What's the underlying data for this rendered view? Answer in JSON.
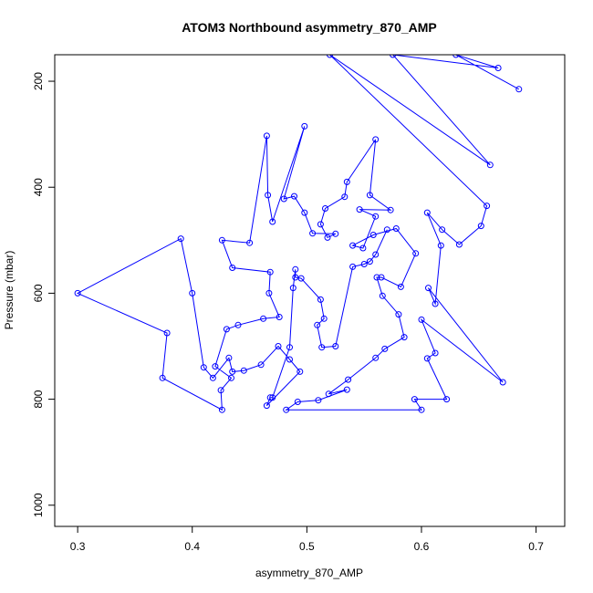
{
  "chart_data": {
    "type": "line",
    "title": "ATOM3 Northbound asymmetry_870_AMP",
    "xlabel": "asymmetry_870_AMP",
    "ylabel": "Pressure (mbar)",
    "xlim": [
      0.28,
      0.725
    ],
    "ylim": [
      1040,
      150
    ],
    "y_reversed": true,
    "xticks": [
      0.3,
      0.4,
      0.5,
      0.6,
      0.7
    ],
    "xtick_labels": [
      "0.3",
      "0.4",
      "0.5",
      "0.6",
      "0.7"
    ],
    "yticks": [
      200,
      400,
      600,
      800,
      1000
    ],
    "ytick_labels": [
      "200",
      "400",
      "600",
      "800",
      "1000"
    ],
    "grid": false,
    "series": [
      {
        "color": "#0000ff",
        "marker": "open-circle",
        "points": [
          [
            0.685,
            215
          ],
          [
            0.63,
            150
          ],
          [
            0.667,
            175
          ],
          [
            0.575,
            150
          ],
          [
            0.66,
            358
          ],
          [
            0.52,
            150
          ],
          [
            0.657,
            435
          ],
          [
            0.652,
            473
          ],
          [
            0.633,
            508
          ],
          [
            0.618,
            480
          ],
          [
            0.605,
            448
          ],
          [
            0.617,
            510
          ],
          [
            0.612,
            620
          ],
          [
            0.606,
            590
          ],
          [
            0.671,
            768
          ],
          [
            0.6,
            650
          ],
          [
            0.612,
            713
          ],
          [
            0.605,
            723
          ],
          [
            0.622,
            800
          ],
          [
            0.594,
            800
          ],
          [
            0.6,
            820
          ],
          [
            0.482,
            820
          ],
          [
            0.492,
            805
          ],
          [
            0.51,
            802
          ],
          [
            0.535,
            782
          ],
          [
            0.519,
            790
          ],
          [
            0.536,
            763
          ],
          [
            0.56,
            722
          ],
          [
            0.568,
            705
          ],
          [
            0.585,
            683
          ],
          [
            0.58,
            640
          ],
          [
            0.566,
            605
          ],
          [
            0.561,
            570
          ],
          [
            0.565,
            570
          ],
          [
            0.582,
            588
          ],
          [
            0.595,
            525
          ],
          [
            0.578,
            478
          ],
          [
            0.558,
            490
          ],
          [
            0.54,
            510
          ],
          [
            0.549,
            515
          ],
          [
            0.56,
            455
          ],
          [
            0.546,
            442
          ],
          [
            0.573,
            443
          ],
          [
            0.555,
            415
          ],
          [
            0.56,
            310
          ],
          [
            0.535,
            390
          ],
          [
            0.533,
            418
          ],
          [
            0.516,
            440
          ],
          [
            0.512,
            470
          ],
          [
            0.518,
            495
          ],
          [
            0.525,
            488
          ],
          [
            0.505,
            487
          ],
          [
            0.498,
            448
          ],
          [
            0.489,
            417
          ],
          [
            0.48,
            422
          ],
          [
            0.498,
            285
          ],
          [
            0.47,
            465
          ],
          [
            0.466,
            415
          ],
          [
            0.465,
            303
          ],
          [
            0.45,
            505
          ],
          [
            0.426,
            500
          ],
          [
            0.435,
            552
          ],
          [
            0.468,
            560
          ],
          [
            0.467,
            600
          ],
          [
            0.476,
            645
          ],
          [
            0.462,
            648
          ],
          [
            0.44,
            660
          ],
          [
            0.43,
            668
          ],
          [
            0.42,
            738
          ],
          [
            0.434,
            760
          ],
          [
            0.425,
            783
          ],
          [
            0.426,
            820
          ],
          [
            0.374,
            760
          ],
          [
            0.378,
            675
          ],
          [
            0.3,
            600
          ],
          [
            0.39,
            497
          ],
          [
            0.4,
            600
          ],
          [
            0.41,
            740
          ],
          [
            0.418,
            760
          ],
          [
            0.432,
            722
          ],
          [
            0.435,
            748
          ],
          [
            0.445,
            746
          ],
          [
            0.46,
            735
          ],
          [
            0.475,
            700
          ],
          [
            0.485,
            725
          ],
          [
            0.494,
            748
          ],
          [
            0.465,
            812
          ],
          [
            0.468,
            797
          ],
          [
            0.47,
            797
          ],
          [
            0.485,
            702
          ],
          [
            0.488,
            590
          ],
          [
            0.49,
            555
          ],
          [
            0.49,
            570
          ],
          [
            0.495,
            572
          ],
          [
            0.512,
            612
          ],
          [
            0.515,
            648
          ],
          [
            0.509,
            660
          ],
          [
            0.513,
            702
          ],
          [
            0.525,
            700
          ],
          [
            0.54,
            550
          ],
          [
            0.55,
            545
          ],
          [
            0.555,
            540
          ],
          [
            0.56,
            527
          ],
          [
            0.57,
            480
          ]
        ]
      }
    ]
  }
}
